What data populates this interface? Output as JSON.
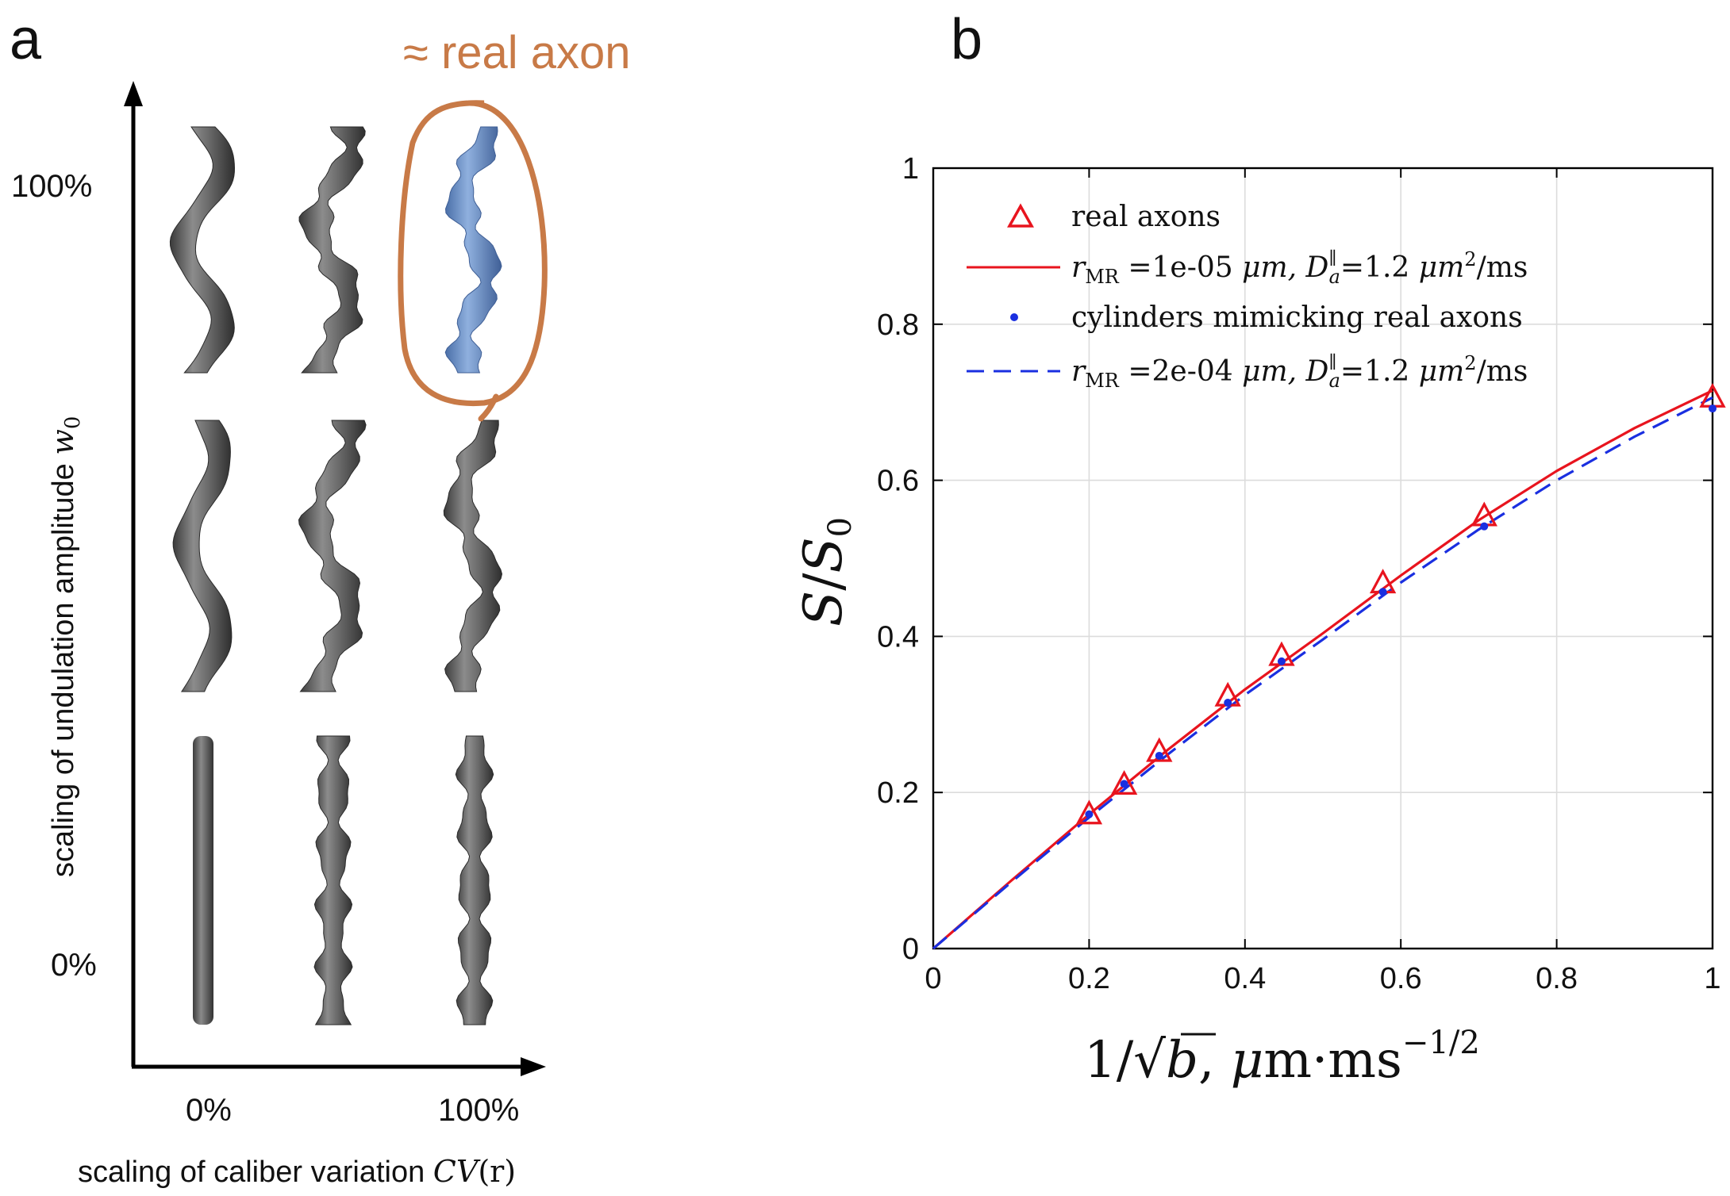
{
  "panel_a": {
    "letter": "a",
    "highlight_label": "≈ real axon",
    "y_axis": {
      "label_prefix": "scaling of undulation amplitude ",
      "label_var": "w",
      "label_sub": "0",
      "tick_top": "100%",
      "tick_bottom": "0%"
    },
    "x_axis": {
      "label_prefix": "scaling of caliber variation ",
      "label_var": "CV",
      "label_arg": "(r)",
      "tick_left": "0%",
      "tick_right": "100%"
    },
    "colors": {
      "axon": "#5f5f5f",
      "real_axon": "#6e92c8",
      "highlight": "#c87a47"
    }
  },
  "panel_b": {
    "letter": "b",
    "chart_data": {
      "type": "line",
      "xlabel": "1/√b, μm·ms^-1/2",
      "ylabel": "S/S0",
      "xlim": [
        0,
        1
      ],
      "ylim": [
        0,
        1
      ],
      "grid": true,
      "x_ticks": [
        "0",
        "0.2",
        "0.4",
        "0.6",
        "0.8",
        "1"
      ],
      "y_ticks": [
        "0",
        "0.2",
        "0.4",
        "0.6",
        "0.8",
        "1"
      ],
      "legend_position": "top-left",
      "series": [
        {
          "name": "real axons",
          "kind": "markers",
          "marker": "triangle",
          "color": "#e8141e",
          "x": [
            0.2,
            0.245,
            0.29,
            0.378,
            0.447,
            0.577,
            0.707,
            1.0
          ],
          "y": [
            0.171,
            0.209,
            0.251,
            0.322,
            0.374,
            0.467,
            0.553,
            0.705
          ]
        },
        {
          "name": "rMR =1e-05 μm, Da∥=1.2 μm²/ms",
          "kind": "line",
          "line_style": "solid",
          "color": "#e8141e",
          "x": [
            0,
            0.1,
            0.2,
            0.3,
            0.4,
            0.5,
            0.6,
            0.7,
            0.8,
            0.9,
            1.0
          ],
          "y": [
            0,
            0.087,
            0.172,
            0.254,
            0.332,
            0.404,
            0.478,
            0.549,
            0.612,
            0.667,
            0.715
          ]
        },
        {
          "name": "cylinders mimicking real axons",
          "kind": "markers",
          "marker": "dot",
          "color": "#1a2fe0",
          "x": [
            0.2,
            0.245,
            0.29,
            0.378,
            0.447,
            0.577,
            0.707,
            1.0
          ],
          "y": [
            0.172,
            0.211,
            0.247,
            0.315,
            0.368,
            0.457,
            0.541,
            0.692
          ]
        },
        {
          "name": "rMR =2e-04 μm, Da∥=1.2 μm²/ms",
          "kind": "line",
          "line_style": "dashed",
          "color": "#1a2fe0",
          "x": [
            0,
            0.1,
            0.2,
            0.3,
            0.4,
            0.5,
            0.6,
            0.7,
            0.8,
            0.9,
            1.0
          ],
          "y": [
            0,
            0.085,
            0.168,
            0.248,
            0.325,
            0.396,
            0.469,
            0.537,
            0.6,
            0.656,
            0.706
          ]
        }
      ]
    },
    "legend": {
      "entry1": "real axons",
      "entry2_var": "r",
      "entry2_sub": "MR",
      "entry2_val": " =1e-05 ",
      "entry2_unit": "μm, ",
      "entry2_d": "D",
      "entry2_dsup": "∥",
      "entry2_dsub": "a",
      "entry2_dval": "=1.2 ",
      "entry2_dunit": "μm",
      "entry2_sq": "2",
      "entry2_ms": "/ms",
      "entry3": "cylinders mimicking real axons",
      "entry4_var": "r",
      "entry4_sub": "MR",
      "entry4_val": " =2e-04 ",
      "entry4_unit": "μm, ",
      "entry4_d": "D",
      "entry4_dsup": "∥",
      "entry4_dsub": "a",
      "entry4_dval": "=1.2 ",
      "entry4_dunit": "μm",
      "entry4_sq": "2",
      "entry4_ms": "/ms"
    },
    "ylabel_parts": {
      "s": "S",
      "slash": "/",
      "s0": "S",
      "sub0": "0"
    },
    "xlabel_parts": {
      "one": "1/",
      "root": "√",
      "b": "b",
      "comma": ", ",
      "mu": "μ",
      "m": "m·ms",
      "exp": "−1/2"
    }
  }
}
